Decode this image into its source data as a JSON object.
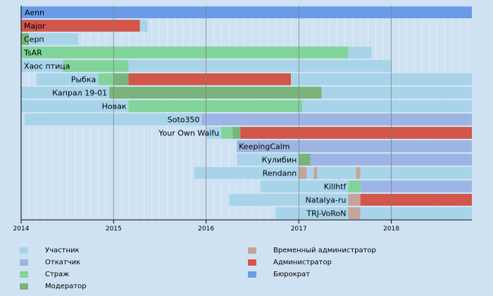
{
  "chart_data": {
    "type": "gantt",
    "x_ticks": [
      "2014",
      "2015",
      "2016",
      "2017",
      "2018"
    ],
    "x_range": [
      "2014-01-01",
      "2018-11-15"
    ],
    "minor_grid": "monthly",
    "legend_position": "bottom",
    "roles": [
      {
        "key": "participant",
        "label": "Участник",
        "color": "#a8d4ea"
      },
      {
        "key": "rollbacker",
        "label": "Откатчик",
        "color": "#9db5e4"
      },
      {
        "key": "guard",
        "label": "Страж",
        "color": "#81d49a"
      },
      {
        "key": "moderator",
        "label": "Модератор",
        "color": "#79b47a"
      },
      {
        "key": "temp_admin",
        "label": "Временный администратор",
        "color": "#c4a49d"
      },
      {
        "key": "admin",
        "label": "Администратор",
        "color": "#d2564a"
      },
      {
        "key": "bureaucrat",
        "label": "Бюрократ",
        "color": "#6a9be8"
      }
    ],
    "users": [
      {
        "name": "Aenn",
        "spans": [
          {
            "role": "bureaucrat",
            "start": "2014-01-01",
            "end": "2018-11-15"
          }
        ]
      },
      {
        "name": "Major",
        "spans": [
          {
            "role": "admin",
            "start": "2014-01-01",
            "end": "2015-04-15"
          },
          {
            "role": "participant",
            "start": "2015-04-15",
            "end": "2015-05-15"
          }
        ]
      },
      {
        "name": "Серп",
        "spans": [
          {
            "role": "moderator",
            "start": "2014-01-01",
            "end": "2014-02-01"
          },
          {
            "role": "participant",
            "start": "2014-02-01",
            "end": "2014-08-15"
          }
        ]
      },
      {
        "name": "TsAR",
        "spans": [
          {
            "role": "guard",
            "start": "2014-01-01",
            "end": "2017-07-15"
          },
          {
            "role": "participant",
            "start": "2017-07-15",
            "end": "2017-10-15"
          }
        ]
      },
      {
        "name": "Хаос птица",
        "spans": [
          {
            "role": "participant",
            "start": "2014-01-01",
            "end": "2014-06-15"
          },
          {
            "role": "guard",
            "start": "2014-06-15",
            "end": "2015-03-01"
          },
          {
            "role": "participant",
            "start": "2015-03-01",
            "end": "2018-01-01"
          }
        ]
      },
      {
        "name": "Рыбка",
        "spans": [
          {
            "role": "participant",
            "start": "2014-03-01",
            "end": "2014-11-01"
          },
          {
            "role": "guard",
            "start": "2014-11-01",
            "end": "2015-01-01"
          },
          {
            "role": "moderator",
            "start": "2015-01-01",
            "end": "2015-03-01"
          },
          {
            "role": "admin",
            "start": "2015-03-01",
            "end": "2016-12-01"
          },
          {
            "role": "participant",
            "start": "2016-12-01",
            "end": "2018-11-15"
          }
        ]
      },
      {
        "name": "Капрал 19-01",
        "spans": [
          {
            "role": "participant",
            "start": "2014-01-01",
            "end": "2014-12-15"
          },
          {
            "role": "moderator",
            "start": "2014-12-15",
            "end": "2017-04-01"
          },
          {
            "role": "participant",
            "start": "2017-04-01",
            "end": "2018-11-15"
          }
        ]
      },
      {
        "name": "Новак",
        "spans": [
          {
            "role": "participant",
            "start": "2014-01-01",
            "end": "2015-03-01"
          },
          {
            "role": "guard",
            "start": "2015-03-01",
            "end": "2017-01-15"
          },
          {
            "role": "participant",
            "start": "2017-01-15",
            "end": "2018-11-15"
          }
        ]
      },
      {
        "name": "Soto350",
        "spans": [
          {
            "role": "participant",
            "start": "2014-01-15",
            "end": "2015-12-15"
          },
          {
            "role": "rollbacker",
            "start": "2015-12-15",
            "end": "2018-11-15"
          }
        ]
      },
      {
        "name": "Your Own Waifu",
        "spans": [
          {
            "role": "participant",
            "start": "2016-01-01",
            "end": "2016-03-01"
          },
          {
            "role": "guard",
            "start": "2016-03-01",
            "end": "2016-04-15"
          },
          {
            "role": "moderator",
            "start": "2016-04-15",
            "end": "2016-05-15"
          },
          {
            "role": "admin",
            "start": "2016-05-15",
            "end": "2018-11-15"
          }
        ]
      },
      {
        "name": "KeepingCalm",
        "spans": [
          {
            "role": "rollbacker",
            "start": "2016-05-01",
            "end": "2018-11-15"
          }
        ]
      },
      {
        "name": "Кулибин",
        "spans": [
          {
            "role": "participant",
            "start": "2016-05-01",
            "end": "2017-01-01"
          },
          {
            "role": "moderator",
            "start": "2017-01-01",
            "end": "2017-02-15"
          },
          {
            "role": "rollbacker",
            "start": "2017-02-15",
            "end": "2018-11-15"
          }
        ]
      },
      {
        "name": "Rendann",
        "spans": [
          {
            "role": "participant",
            "start": "2015-11-15",
            "end": "2017-01-01"
          },
          {
            "role": "temp_admin",
            "start": "2017-01-01",
            "end": "2017-02-01"
          },
          {
            "role": "participant",
            "start": "2017-02-01",
            "end": "2017-03-01"
          },
          {
            "role": "temp_admin",
            "start": "2017-03-01",
            "end": "2017-03-15"
          },
          {
            "role": "participant",
            "start": "2017-03-15",
            "end": "2017-08-15"
          },
          {
            "role": "temp_admin",
            "start": "2017-08-15",
            "end": "2017-09-01"
          },
          {
            "role": "participant",
            "start": "2017-09-01",
            "end": "2018-11-15"
          }
        ]
      },
      {
        "name": "Killhtf",
        "spans": [
          {
            "role": "participant",
            "start": "2016-08-01",
            "end": "2017-07-15"
          },
          {
            "role": "guard",
            "start": "2017-07-15",
            "end": "2017-09-01"
          },
          {
            "role": "rollbacker",
            "start": "2017-09-01",
            "end": "2018-11-15"
          }
        ]
      },
      {
        "name": "Natalya-ru",
        "spans": [
          {
            "role": "participant",
            "start": "2016-04-01",
            "end": "2017-07-15"
          },
          {
            "role": "temp_admin",
            "start": "2017-07-15",
            "end": "2017-09-01"
          },
          {
            "role": "admin",
            "start": "2017-09-01",
            "end": "2018-11-15"
          }
        ]
      },
      {
        "name": "TRJ-VoRoN",
        "spans": [
          {
            "role": "participant",
            "start": "2016-10-01",
            "end": "2017-07-15"
          },
          {
            "role": "temp_admin",
            "start": "2017-07-15",
            "end": "2017-09-01"
          },
          {
            "role": "participant",
            "start": "2017-09-01",
            "end": "2018-11-15"
          }
        ]
      }
    ]
  }
}
